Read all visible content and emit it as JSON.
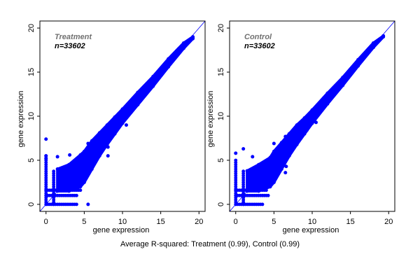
{
  "caption": "Average R-squared: Treatment (0.99), Control (0.99)",
  "colors": {
    "points": "#0000ff",
    "diagonal": "#0000ff",
    "axis": "#000000",
    "title_label": "#707070"
  },
  "chart_data": [
    {
      "type": "scatter",
      "title": "Treatment",
      "subtitle": "n=33602",
      "xlabel": "gene expression",
      "ylabel": "gene expression",
      "xlim": [
        -0.8,
        20.8
      ],
      "ylim": [
        -0.8,
        20.8
      ],
      "xticks": [
        "0",
        "5",
        "10",
        "15",
        "20"
      ],
      "yticks": [
        "0",
        "5",
        "10",
        "15",
        "20"
      ],
      "reference_line": "y = x",
      "grid": false,
      "band": [
        [
          1.5,
          1.5,
          4
        ],
        [
          3,
          1.5,
          4.5
        ],
        [
          4.5,
          2,
          5.6
        ],
        [
          5,
          2.5,
          6
        ],
        [
          6,
          4,
          7.2
        ],
        [
          7,
          5.5,
          8.1
        ],
        [
          8,
          6.8,
          9
        ],
        [
          9,
          8,
          9.9
        ],
        [
          10,
          9.2,
          10.8
        ],
        [
          12,
          11.3,
          12.7
        ],
        [
          14,
          13.4,
          14.5
        ],
        [
          16,
          15.6,
          16.5
        ],
        [
          18,
          17.7,
          18.3
        ],
        [
          19.2,
          18.8,
          19
        ]
      ],
      "columns": [
        [
          0,
          0,
          5.5
        ],
        [
          1,
          0,
          3.8
        ]
      ],
      "rows": [
        [
          0,
          0,
          4
        ],
        [
          1,
          0,
          4
        ],
        [
          1.6,
          0,
          4.5
        ]
      ],
      "outliers": [
        [
          0,
          7.4
        ],
        [
          0,
          5.5
        ],
        [
          0,
          5.2
        ],
        [
          1.5,
          5.4
        ],
        [
          3.1,
          5.6
        ],
        [
          5.5,
          6.9
        ],
        [
          8.1,
          6.5
        ],
        [
          8.1,
          5.5
        ],
        [
          9.5,
          8.8
        ],
        [
          5.5,
          0
        ],
        [
          10.5,
          9
        ],
        [
          19.2,
          18.9
        ]
      ]
    },
    {
      "type": "scatter",
      "title": "Control",
      "subtitle": "n=33602",
      "xlabel": "gene expression",
      "ylabel": "gene expression",
      "xlim": [
        -0.8,
        20.8
      ],
      "ylim": [
        -0.8,
        20.8
      ],
      "xticks": [
        "0",
        "5",
        "10",
        "15",
        "20"
      ],
      "yticks": [
        "0",
        "5",
        "10",
        "15",
        "20"
      ],
      "reference_line": "y = x",
      "grid": false,
      "band": [
        [
          1.5,
          1.5,
          3.8
        ],
        [
          3,
          1.5,
          4.5
        ],
        [
          4.5,
          2,
          5.3
        ],
        [
          5,
          2.5,
          6
        ],
        [
          6,
          4,
          7
        ],
        [
          7,
          5.5,
          8
        ],
        [
          8,
          6.8,
          9
        ],
        [
          9,
          8,
          9.8
        ],
        [
          10,
          9.2,
          10.7
        ],
        [
          12,
          11.4,
          12.6
        ],
        [
          14,
          13.5,
          14.4
        ],
        [
          16,
          15.7,
          16.4
        ],
        [
          18,
          17.8,
          18.3
        ],
        [
          19.3,
          19,
          19.1
        ]
      ],
      "columns": [
        [
          0,
          0,
          5
        ],
        [
          1,
          0,
          3.8
        ]
      ],
      "rows": [
        [
          0,
          0,
          3.7
        ],
        [
          1,
          0,
          4.4
        ],
        [
          1.6,
          0,
          4
        ]
      ],
      "outliers": [
        [
          0,
          5.8
        ],
        [
          1,
          6.3
        ],
        [
          2.2,
          5.4
        ],
        [
          5,
          6.9
        ],
        [
          6.5,
          7.7
        ],
        [
          6.5,
          3.6
        ],
        [
          6.6,
          4.3
        ],
        [
          4.5,
          2
        ],
        [
          9.3,
          8.4
        ],
        [
          10.5,
          9.3
        ],
        [
          19.3,
          19.1
        ]
      ]
    }
  ]
}
